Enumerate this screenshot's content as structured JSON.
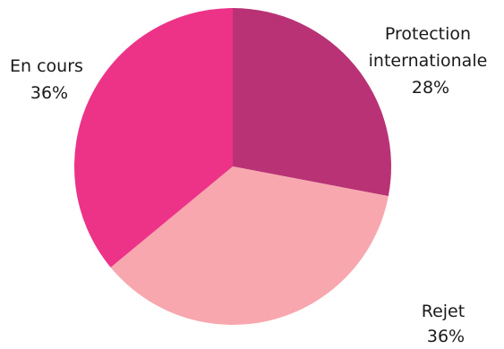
{
  "chart_data": {
    "type": "pie",
    "title": "",
    "slices": [
      {
        "label_lines": [
          "Protection",
          "internationale"
        ],
        "percent_label": "28%",
        "value": 28,
        "color": "#b83275"
      },
      {
        "label_lines": [
          "Rejet"
        ],
        "percent_label": "36%",
        "value": 36,
        "color": "#f7a7ad"
      },
      {
        "label_lines": [
          "En cours"
        ],
        "percent_label": "36%",
        "value": 36,
        "color": "#ec3388"
      }
    ],
    "start_angle_deg": 0,
    "direction": "clockwise",
    "legend": "none",
    "labels": "outside"
  }
}
